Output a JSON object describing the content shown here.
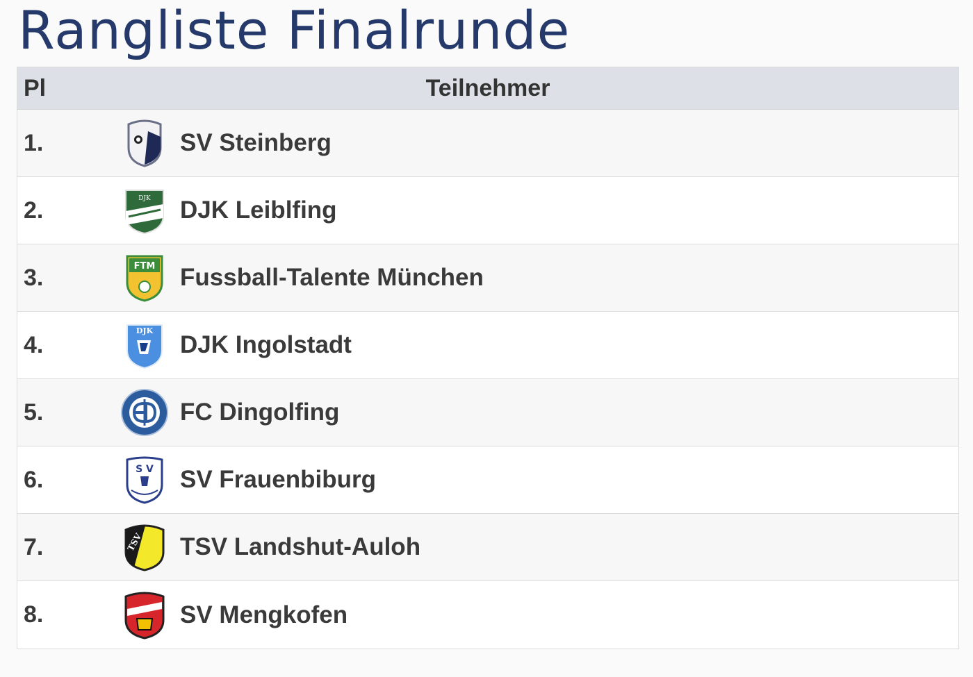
{
  "page": {
    "title": "Rangliste Finalrunde"
  },
  "table": {
    "headers": {
      "rank": "Pl",
      "team": "Teilnehmer"
    },
    "rows": [
      {
        "rank": "1.",
        "team": "SV Steinberg",
        "logo": "sv-steinberg-crest-icon"
      },
      {
        "rank": "2.",
        "team": "DJK Leiblfing",
        "logo": "djk-leiblfing-crest-icon"
      },
      {
        "rank": "3.",
        "team": "Fussball-Talente München",
        "logo": "ftm-crest-icon"
      },
      {
        "rank": "4.",
        "team": "DJK Ingolstadt",
        "logo": "djk-ingolstadt-crest-icon"
      },
      {
        "rank": "5.",
        "team": "FC Dingolfing",
        "logo": "fc-dingolfing-crest-icon"
      },
      {
        "rank": "6.",
        "team": "SV Frauenbiburg",
        "logo": "sv-frauenbiburg-crest-icon"
      },
      {
        "rank": "7.",
        "team": "TSV Landshut-Auloh",
        "logo": "tsv-landshut-auloh-crest-icon"
      },
      {
        "rank": "8.",
        "team": "SV Mengkofen",
        "logo": "sv-mengkofen-crest-icon"
      }
    ]
  },
  "colors": {
    "title": "#253a6a",
    "header_bg": "#dde1e7",
    "row_alt": "#f7f7f7"
  }
}
